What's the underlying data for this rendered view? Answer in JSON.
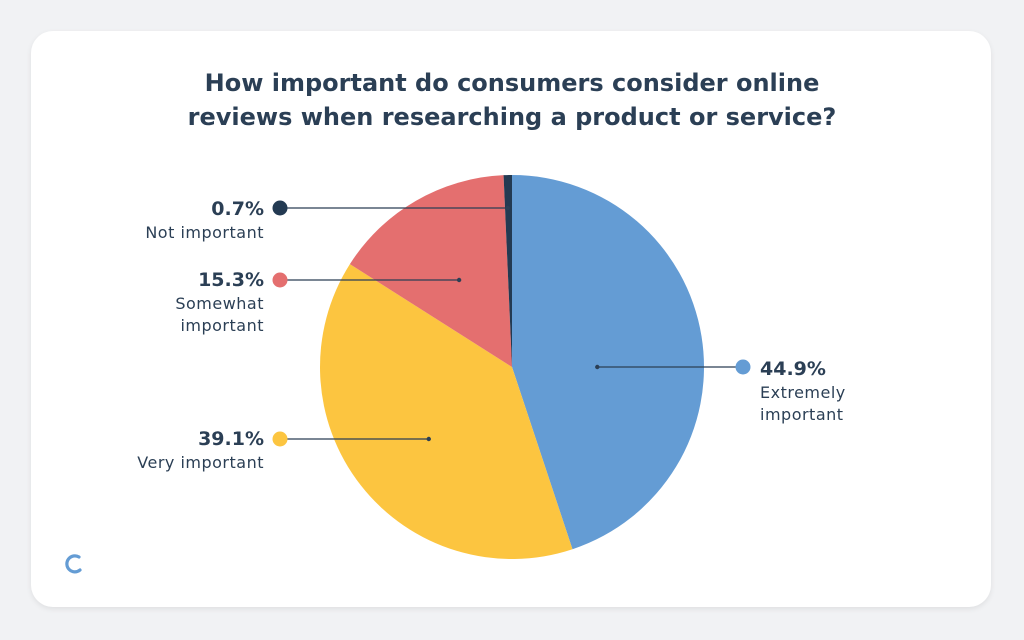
{
  "chart_data": {
    "type": "pie",
    "title_lines": [
      "How important do consumers consider online",
      "reviews when researching a product or service?"
    ],
    "slices": [
      {
        "label": "Extremely important",
        "label_lines": [
          "Extremely",
          "important"
        ],
        "value": 44.9,
        "display": "44.9%",
        "color": "#649cd4"
      },
      {
        "label": "Very important",
        "label_lines": [
          "Very important"
        ],
        "value": 39.1,
        "display": "39.1%",
        "color": "#fcc540"
      },
      {
        "label": "Somewhat important",
        "label_lines": [
          "Somewhat",
          "important"
        ],
        "value": 15.3,
        "display": "15.3%",
        "color": "#e46f6f"
      },
      {
        "label": "Not important",
        "label_lines": [
          "Not important"
        ],
        "value": 0.7,
        "display": "0.7%",
        "color": "#233a52"
      }
    ],
    "legend_placement": "callouts",
    "grid": false
  },
  "colors": {
    "text": "#2b3f55",
    "background": "#f1f2f4",
    "card": "#ffffff",
    "logo": "#649cd4"
  }
}
